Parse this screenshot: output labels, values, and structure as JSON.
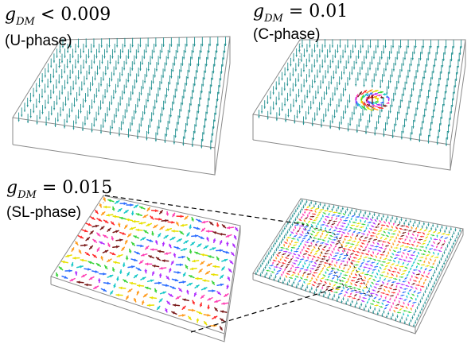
{
  "panels": [
    {
      "id": "u",
      "param": "g",
      "subscript": "DM",
      "relation": "<",
      "value": "0.009",
      "phase": "(U-phase)"
    },
    {
      "id": "c",
      "param": "g",
      "subscript": "DM",
      "relation": "=",
      "value": "0.01",
      "phase": "(C-phase)"
    },
    {
      "id": "sl",
      "param": "g",
      "subscript": "DM",
      "relation": "=",
      "value": "0.015",
      "phase": "(SL-phase)"
    }
  ],
  "colors": {
    "uniform_arrow": "#1f8f8f",
    "box_edge": "#8a8a8a",
    "zoom_line": "#000000",
    "spin_palette": [
      "#ff2a2a",
      "#ff9a1a",
      "#e8e000",
      "#39d33a",
      "#18c8c8",
      "#2a6cff",
      "#b02cff",
      "#ff3fb4",
      "#7a1a1a"
    ]
  }
}
